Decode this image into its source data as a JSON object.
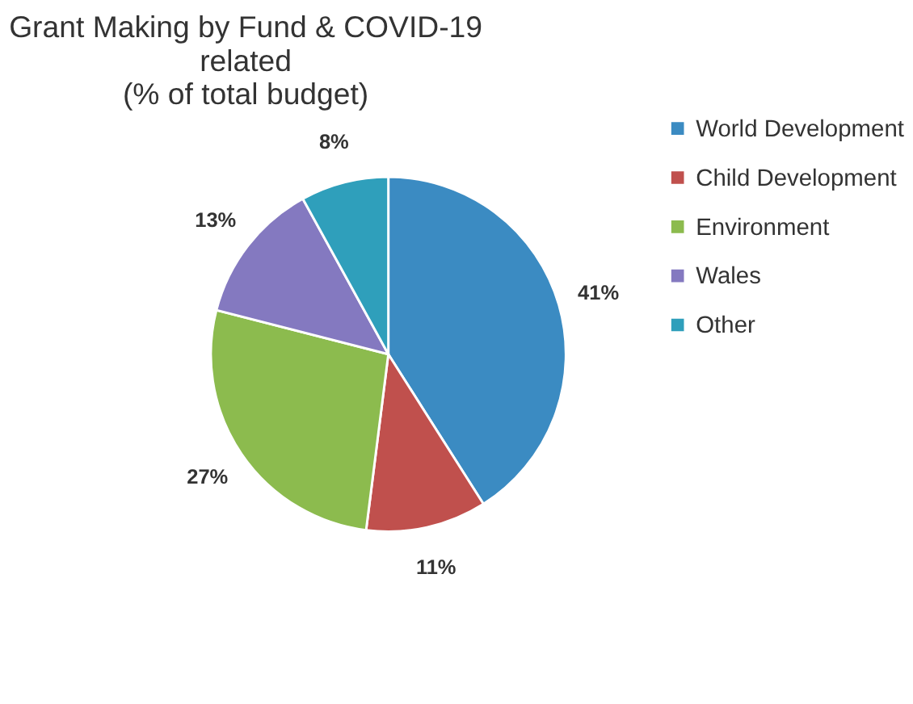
{
  "chart_data": {
    "type": "pie",
    "title": "Grant Making by Fund & COVID-19\nrelated\n(% of total budget)",
    "categories": [
      "World Development",
      "Child Development",
      "Environment",
      "Wales",
      "Other"
    ],
    "values": [
      41,
      11,
      27,
      13,
      8
    ],
    "colors": [
      "#3b8bc2",
      "#c0504d",
      "#8cbb4e",
      "#8479c0",
      "#2f9fbb"
    ],
    "value_labels": [
      "41%",
      "11%",
      "27%",
      "13%",
      "8%"
    ],
    "legend": "right"
  }
}
